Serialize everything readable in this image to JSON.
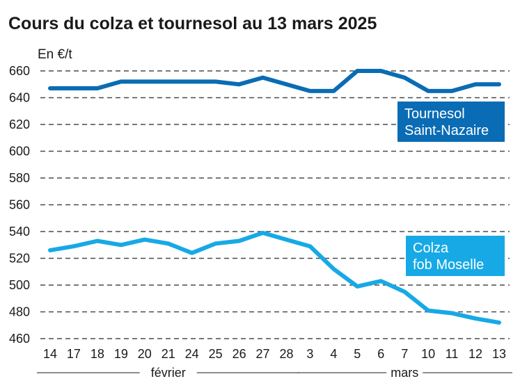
{
  "chart_data": {
    "type": "line",
    "title": "Cours du colza et tournesol au 13 mars 2025",
    "ylabel": "En €/t",
    "ylim": [
      460,
      660
    ],
    "yticks": [
      460,
      480,
      500,
      520,
      540,
      560,
      580,
      600,
      620,
      640,
      660
    ],
    "grid": true,
    "x": [
      "14",
      "17",
      "18",
      "19",
      "20",
      "21",
      "24",
      "25",
      "26",
      "27",
      "28",
      "3",
      "4",
      "5",
      "6",
      "7",
      "10",
      "11",
      "12",
      "13"
    ],
    "month_groups": [
      {
        "label": "février",
        "start": 0,
        "end": 10
      },
      {
        "label": "mars",
        "start": 11,
        "end": 19
      }
    ],
    "series": [
      {
        "name": "Tournesol Saint-Nazaire",
        "label_lines": [
          "Tournesol",
          "Saint-Nazaire"
        ],
        "color": "#0a6cb4",
        "values": [
          647,
          647,
          647,
          652,
          652,
          652,
          652,
          652,
          650,
          655,
          650,
          645,
          645,
          660,
          660,
          655,
          645,
          645,
          650,
          650
        ]
      },
      {
        "name": "Colza fob Moselle",
        "label_lines": [
          "Colza",
          "fob Moselle"
        ],
        "color": "#17a9e5",
        "values": [
          526,
          529,
          533,
          530,
          534,
          531,
          524,
          531,
          533,
          539,
          534,
          529,
          512,
          499,
          503,
          495,
          481,
          479,
          475,
          472
        ]
      }
    ]
  }
}
